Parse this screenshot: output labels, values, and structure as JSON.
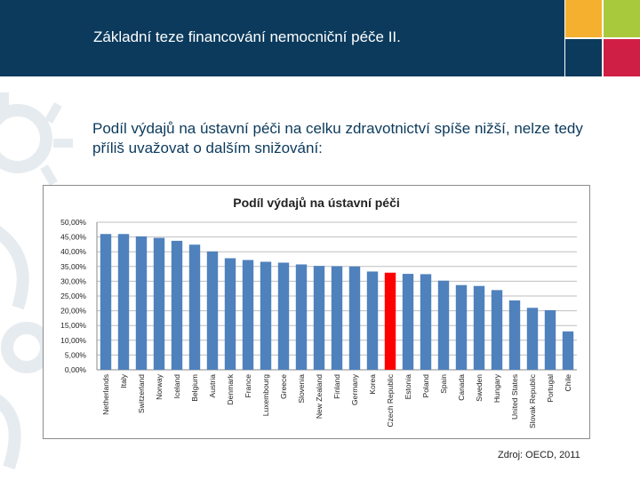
{
  "header": {
    "title": "Základní teze financování nemocniční péče II.",
    "colors": {
      "background": "#0b3a5c",
      "orange": "#f6b030",
      "green": "#a9c93d",
      "red": "#cf1f45"
    }
  },
  "subtitle": "Podíl výdajů na ústavní péči na celku zdravotnictví spíše nižší, nelze tedy příliš uvažovat o dalším snižování:",
  "source": "Zdroj: OECD, 2011",
  "chart_data": {
    "type": "bar",
    "title": "Podíl výdajů na ústavní péči",
    "categories": [
      "Netherlands",
      "Italy",
      "Switzerland",
      "Norway",
      "Iceland",
      "Belgium",
      "Austria",
      "Denmark",
      "France",
      "Luxembourg",
      "Greece",
      "Slovenia",
      "New Zealand",
      "Finland",
      "Germany",
      "Korea",
      "Czech Republic",
      "Estonia",
      "Poland",
      "Spain",
      "Canada",
      "Sweden",
      "Hungary",
      "United States",
      "Slovak Republic",
      "Portugal",
      "Chile"
    ],
    "values": [
      46.0,
      46.0,
      45.2,
      44.7,
      43.7,
      42.4,
      40.1,
      37.8,
      37.2,
      36.6,
      36.3,
      35.7,
      35.2,
      35.1,
      35.0,
      33.3,
      32.9,
      32.5,
      32.4,
      30.2,
      28.7,
      28.4,
      27.0,
      23.5,
      21.0,
      20.2,
      13.0
    ],
    "highlight_category": "Czech Republic",
    "ylim": [
      0,
      50
    ],
    "yticks": [
      "0,00%",
      "5,00%",
      "10,00%",
      "15,00%",
      "20,00%",
      "25,00%",
      "30,00%",
      "35,00%",
      "40,00%",
      "45,00%",
      "50,00%"
    ],
    "grid": true,
    "colors": {
      "bar": "#4f81bd",
      "highlight": "#ff0000",
      "grid": "#bfbfbf"
    }
  }
}
